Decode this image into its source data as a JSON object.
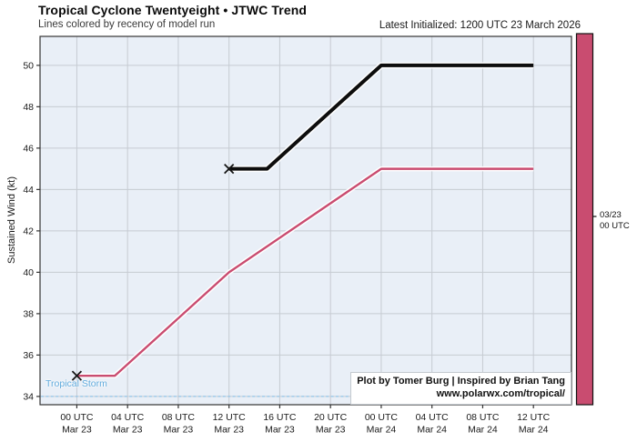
{
  "header": {
    "title": "Tropical Cyclone Twentyeight • JTWC Trend",
    "subtitle": "Lines colored by recency of model run",
    "latest_initialized": "Latest Initialized: 1200 UTC 23 March 2026"
  },
  "footer": {
    "credit_line1": "Plot by Tomer Burg | Inspired by Brian Tang",
    "credit_line2": "www.polarwx.com/tropical/"
  },
  "colorbar": {
    "color": "#c94c70",
    "tick_label": "03/23\n00 UTC"
  },
  "chart_data": {
    "type": "line",
    "title": "Tropical Cyclone Twentyeight • JTWC Trend",
    "subtitle": "Lines colored by recency of model run",
    "xlabel": "",
    "ylabel": "Sustained Wind (kt)",
    "x_unit": "hours since 2026-03-23 00:00 UTC",
    "xlim": [
      -2.9,
      39.0
    ],
    "ylim": [
      33.6,
      51.4
    ],
    "grid": true,
    "grid_color": "#c6cbd2",
    "plot_bg": "#e9eff7",
    "y_ticks": [
      34,
      36,
      38,
      40,
      42,
      44,
      46,
      48,
      50
    ],
    "x_ticks": [
      {
        "hour": 0,
        "time": "00 UTC",
        "date": "Mar 23"
      },
      {
        "hour": 4,
        "time": "04 UTC",
        "date": "Mar 23"
      },
      {
        "hour": 8,
        "time": "08 UTC",
        "date": "Mar 23"
      },
      {
        "hour": 12,
        "time": "12 UTC",
        "date": "Mar 23"
      },
      {
        "hour": 16,
        "time": "16 UTC",
        "date": "Mar 23"
      },
      {
        "hour": 20,
        "time": "20 UTC",
        "date": "Mar 23"
      },
      {
        "hour": 24,
        "time": "00 UTC",
        "date": "Mar 24"
      },
      {
        "hour": 28,
        "time": "04 UTC",
        "date": "Mar 24"
      },
      {
        "hour": 32,
        "time": "08 UTC",
        "date": "Mar 24"
      },
      {
        "hour": 36,
        "time": "12 UTC",
        "date": "Mar 24"
      }
    ],
    "threshold": {
      "value": 34,
      "label": "Tropical Storm",
      "line_color": "#93c5e9",
      "label_color": "#5ea9dc"
    },
    "series": [
      {
        "name": "JTWC forecast initialized 03/23 00 UTC",
        "color": "#c94c70",
        "line_width": 2.4,
        "init_marker": {
          "hour": 0,
          "kt": 35
        },
        "points": [
          [
            0,
            35
          ],
          [
            3,
            35
          ],
          [
            12,
            40
          ],
          [
            24,
            45
          ],
          [
            36,
            45
          ]
        ]
      },
      {
        "name": "JTWC forecast initialized 03/23 12 UTC (latest)",
        "color": "#0d0d0d",
        "line_width": 4,
        "init_marker": {
          "hour": 12,
          "kt": 45
        },
        "points": [
          [
            12,
            45
          ],
          [
            15,
            45
          ],
          [
            24,
            50
          ],
          [
            36,
            50
          ]
        ]
      }
    ]
  }
}
